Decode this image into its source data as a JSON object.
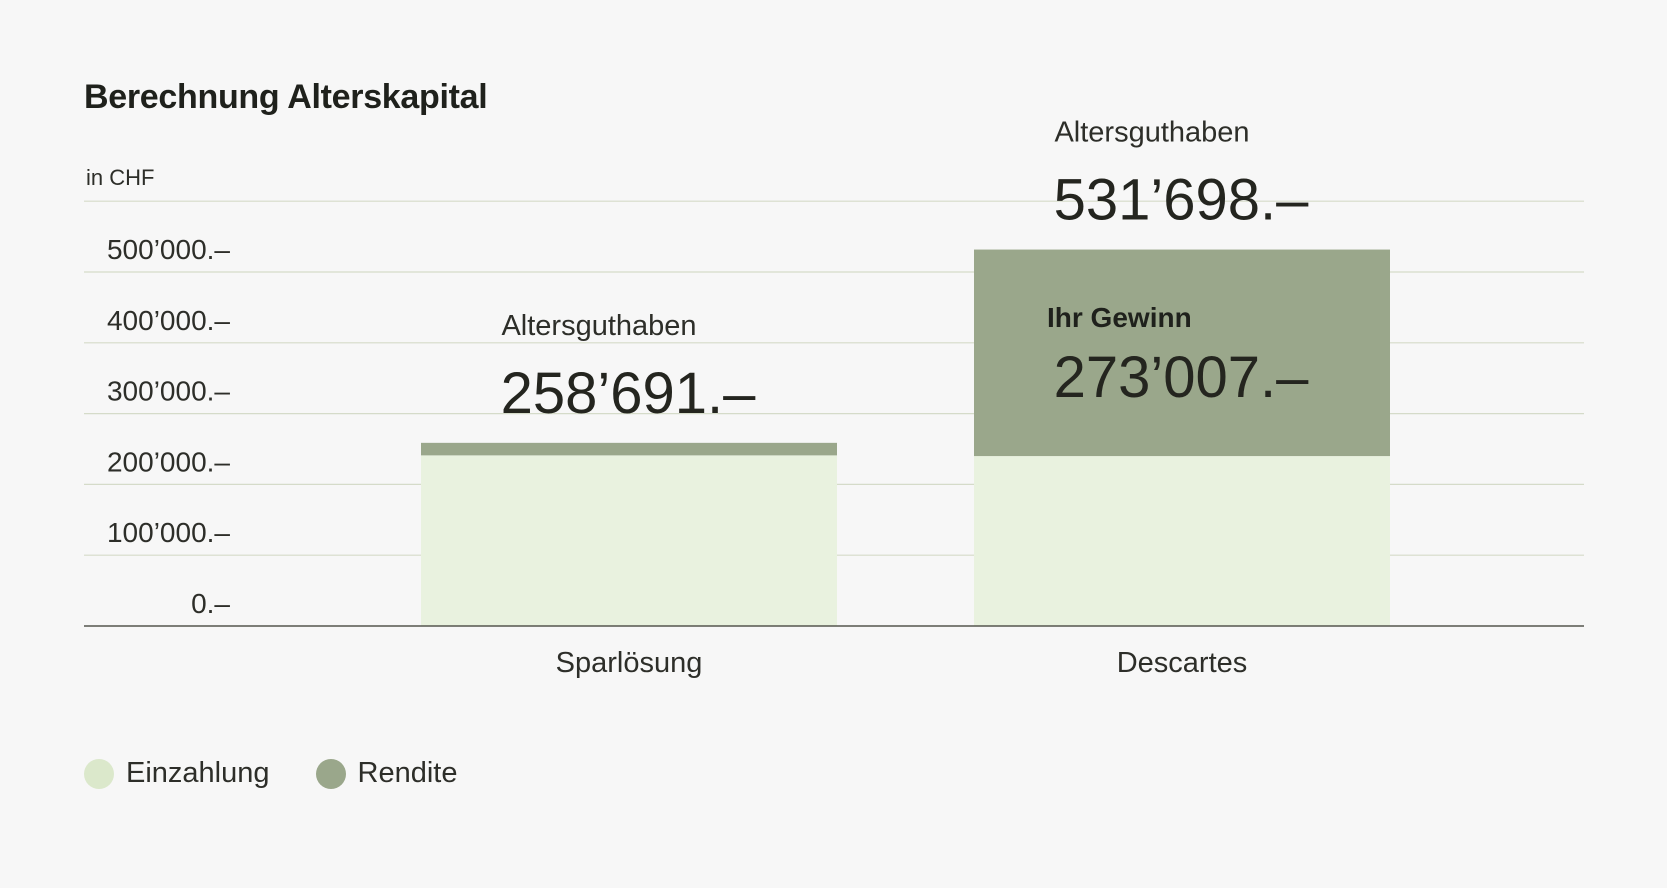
{
  "chart_data": {
    "type": "bar",
    "stacked": true,
    "title": "Berechnung Alterskapital",
    "unit_label": "in CHF",
    "categories": [
      "Sparlösung",
      "Descartes"
    ],
    "series": [
      {
        "name": "Einzahlung",
        "values": [
          241000,
          240000
        ],
        "color": "#e9f2df"
      },
      {
        "name": "Rendite",
        "values": [
          17691,
          291698
        ],
        "color": "#9aa78b"
      }
    ],
    "y_ticks": [
      {
        "value": 0,
        "label": "0.–"
      },
      {
        "value": 100000,
        "label": "100’000.–"
      },
      {
        "value": 200000,
        "label": "200’000.–"
      },
      {
        "value": 300000,
        "label": "300’000.–"
      },
      {
        "value": 400000,
        "label": "400’000.–"
      },
      {
        "value": 500000,
        "label": "500’000.–"
      }
    ],
    "ylim": [
      0,
      600000
    ],
    "grid": true,
    "total_labels": [
      {
        "caption": "Altersguthaben",
        "value": "258’691.–"
      },
      {
        "caption": "Altersguthaben",
        "value": "531’698.–"
      }
    ],
    "gain_label": {
      "caption": "Ihr Gewinn",
      "value": "273’007.–"
    },
    "legend_position": "bottom-left",
    "gridline_color": "#d5dbc9",
    "axis_color": "#55564f"
  }
}
